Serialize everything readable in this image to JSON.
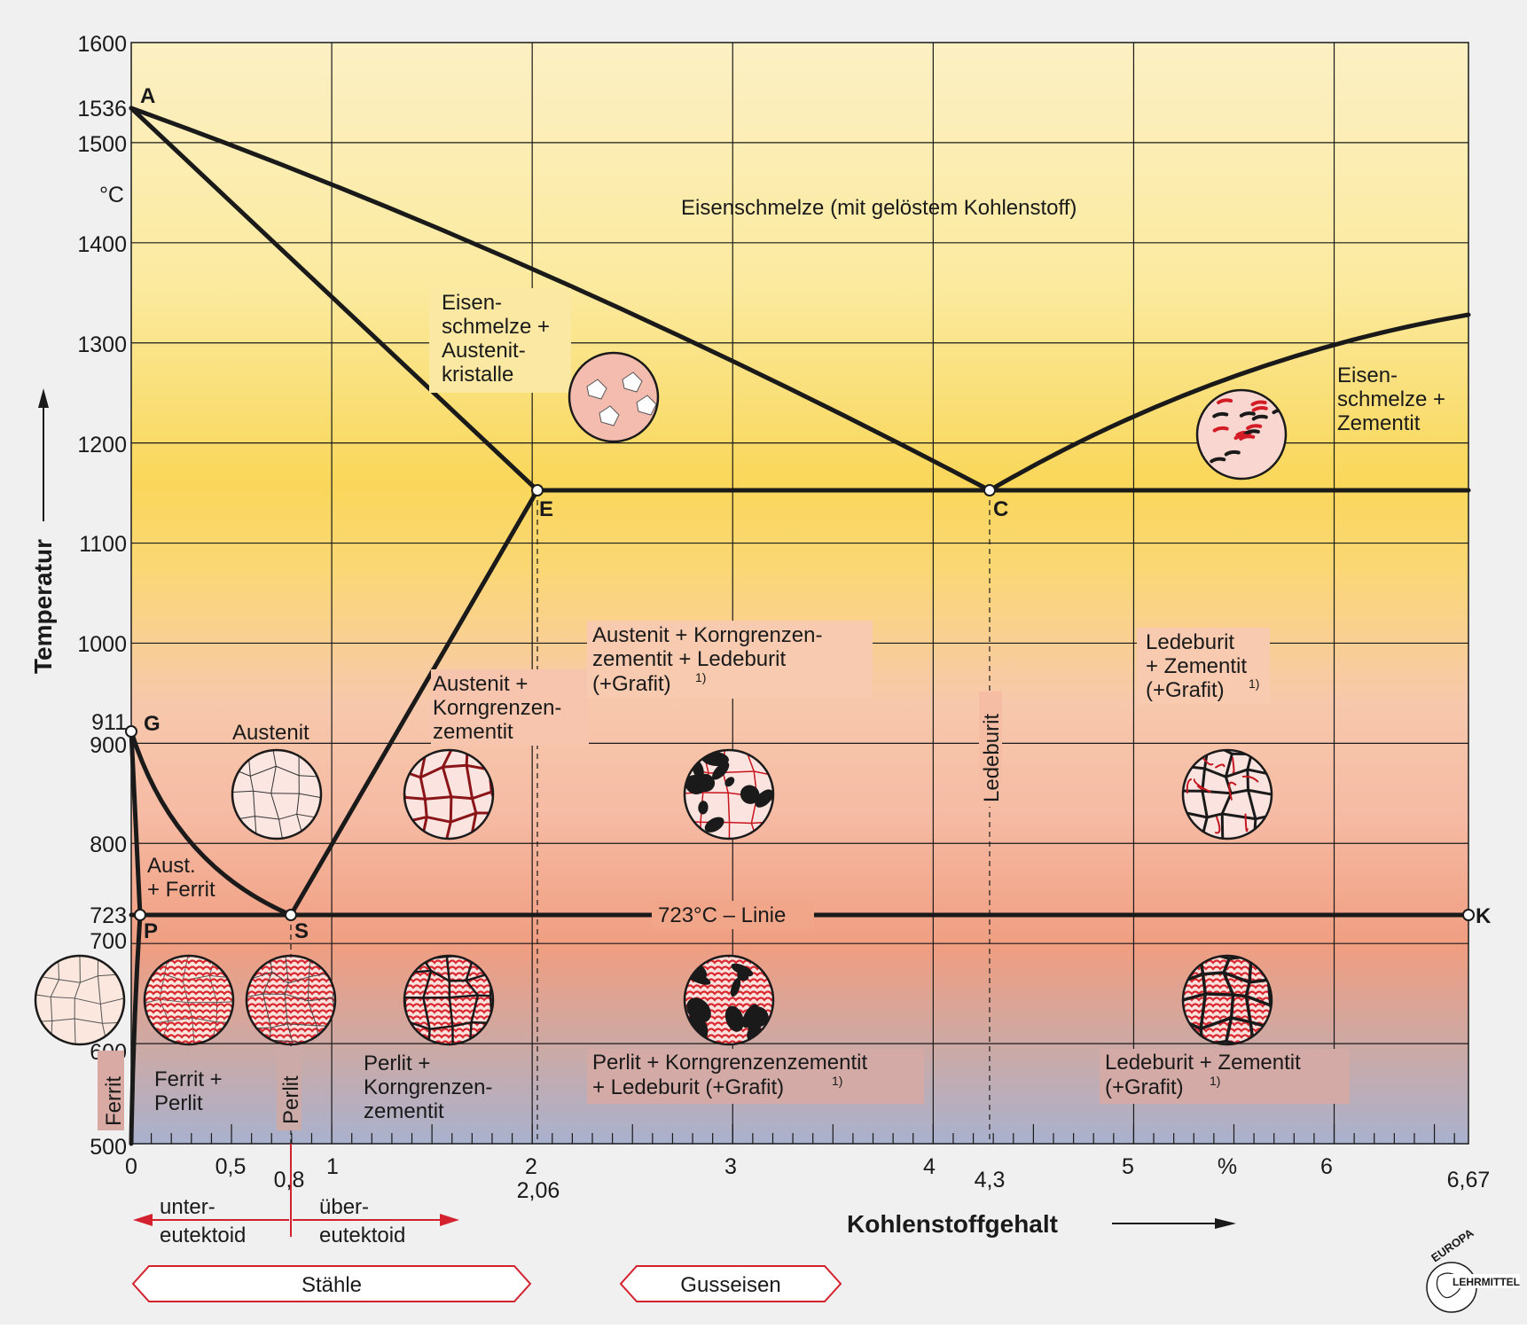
{
  "x_axis": {
    "title": "Kohlenstoffgehalt",
    "unit": "%",
    "ticks": [
      "0",
      "0,5",
      "1",
      "2",
      "3",
      "4",
      "5",
      "6"
    ],
    "marks": [
      "0,8",
      "2,06",
      "4,3",
      "6,67"
    ]
  },
  "y_axis": {
    "title": "Temperatur",
    "unit": "°C",
    "ticks": [
      "1600",
      "1500",
      "1400",
      "1300",
      "1200",
      "1100",
      "1000",
      "900",
      "800",
      "700",
      "600",
      "500"
    ],
    "marks": [
      "1536",
      "911",
      "723"
    ]
  },
  "points": {
    "A": "A",
    "G": "G",
    "P": "P",
    "S": "S",
    "E": "E",
    "C": "C",
    "K": "K"
  },
  "regions": {
    "melt": "Eisenschmelze (mit gelöstem Kohlenstoff)",
    "melt_aust": [
      "Eisen-",
      "schmelze +",
      "Austenit-",
      "kristalle"
    ],
    "melt_zem": [
      "Eisen-",
      "schmelze +",
      "Zementit"
    ],
    "aust": "Austenit",
    "aust_kgz": [
      "Austenit +",
      "Korngrenzen-",
      "zementit"
    ],
    "aust_kgz_led": [
      "Austenit + Korngrenzen-",
      "zementit + Ledeburit",
      "(+Grafit)"
    ],
    "led_zem_high": [
      "Ledeburit",
      "+ Zementit",
      "(+Grafit)"
    ],
    "ledeburit": "Ledeburit",
    "aust_ferrit": [
      "Aust.",
      "+ Ferrit"
    ],
    "line723": "723°C – Linie",
    "ferrit": "Ferrit",
    "ferrit_perlit": [
      "Ferrit +",
      "Perlit"
    ],
    "perlit": "Perlit",
    "perlit_kgz": [
      "Perlit +",
      "Korngrenzen-",
      "zementit"
    ],
    "perlit_kgz_led": [
      "Perlit + Korngrenzenzementit",
      "+ Ledeburit (+Grafit)"
    ],
    "led_zem_low": [
      "Ledeburit + Zementit",
      "(+Grafit)"
    ],
    "footnote_mark": "1)"
  },
  "classification": {
    "unter": [
      "unter-",
      "eutektoid"
    ],
    "ueber": [
      "über-",
      "eutektoid"
    ],
    "staehle": "Stähle",
    "guss": "Gusseisen"
  },
  "logo": {
    "top": "EUROPA",
    "bottom": "LEHRMITTEL"
  },
  "chart_data": {
    "type": "diagram",
    "x_range": [
      0,
      6.67
    ],
    "y_range": [
      500,
      1600
    ],
    "points": [
      {
        "name": "A",
        "x": 0,
        "y": 1536
      },
      {
        "name": "G",
        "x": 0,
        "y": 911
      },
      {
        "name": "P",
        "x": 0.05,
        "y": 723
      },
      {
        "name": "S",
        "x": 0.8,
        "y": 723
      },
      {
        "name": "E",
        "x": 2.06,
        "y": 1147
      },
      {
        "name": "C",
        "x": 4.3,
        "y": 1147
      },
      {
        "name": "K",
        "x": 6.67,
        "y": 723
      }
    ],
    "lines": [
      {
        "from": "A",
        "to": "C",
        "kind": "liquidus"
      },
      {
        "from": "C",
        "to_x": 6.67,
        "to_y": 1330,
        "kind": "liquidus"
      },
      {
        "from": "A",
        "to": "E",
        "kind": "solidus"
      },
      {
        "from": "E",
        "to_x": 6.67,
        "to_y": 1147,
        "kind": "eutectic"
      },
      {
        "from": "E",
        "to": "S",
        "kind": "Acm"
      },
      {
        "from": "G",
        "to": "S",
        "kind": "A3"
      },
      {
        "from": "G",
        "to": "P",
        "kind": "A3"
      },
      {
        "from": "P",
        "to_x": 0,
        "to_y": 500,
        "kind": "solvus"
      },
      {
        "from": "P",
        "to": "K",
        "kind": "eutectoid"
      }
    ]
  }
}
